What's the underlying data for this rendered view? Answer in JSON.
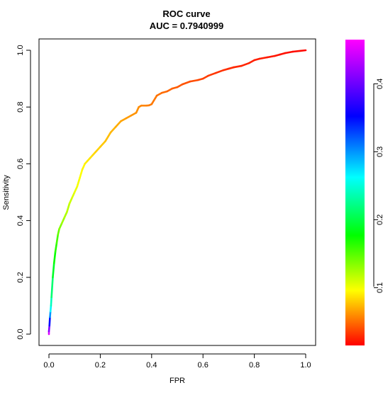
{
  "chart_data": {
    "type": "line",
    "title": "ROC curve",
    "subtitle": "AUC = 0.7940999",
    "xlabel": "FPR",
    "ylabel": "Sensitivity",
    "xlim": [
      0,
      1
    ],
    "ylim": [
      0,
      1
    ],
    "x_ticks": [
      "0.0",
      "0.2",
      "0.4",
      "0.6",
      "0.8",
      "1.0"
    ],
    "y_ticks": [
      "0.0",
      "0.2",
      "0.4",
      "0.6",
      "0.8",
      "1.0"
    ],
    "grid": false,
    "colorbar": {
      "range": [
        0.015,
        0.465
      ],
      "ticks": [
        "0.1",
        "0.2",
        "0.3",
        "0.4"
      ],
      "tick_values": [
        0.1,
        0.2,
        0.3,
        0.4
      ],
      "colormap": "rainbow (red→yellow→green→cyan→blue→magenta)"
    },
    "series": [
      {
        "x": [
          0.0,
          0.0,
          0.002,
          0.004,
          0.006,
          0.008,
          0.01,
          0.015,
          0.02,
          0.025,
          0.03,
          0.035,
          0.04,
          0.05,
          0.06,
          0.07,
          0.08,
          0.09,
          0.1,
          0.11,
          0.12,
          0.13,
          0.14,
          0.15,
          0.16,
          0.17,
          0.18,
          0.2,
          0.22,
          0.24,
          0.26,
          0.28,
          0.3,
          0.32,
          0.34,
          0.35,
          0.36,
          0.38,
          0.39,
          0.4,
          0.42,
          0.44,
          0.46,
          0.48,
          0.5,
          0.52,
          0.55,
          0.58,
          0.6,
          0.62,
          0.65,
          0.68,
          0.7,
          0.72,
          0.75,
          0.78,
          0.8,
          0.82,
          0.85,
          0.88,
          0.9,
          0.92,
          0.95,
          0.98,
          1.0
        ],
        "y": [
          0.0,
          0.01,
          0.03,
          0.06,
          0.08,
          0.1,
          0.13,
          0.2,
          0.25,
          0.29,
          0.32,
          0.35,
          0.37,
          0.39,
          0.41,
          0.43,
          0.46,
          0.48,
          0.5,
          0.52,
          0.55,
          0.58,
          0.6,
          0.61,
          0.62,
          0.63,
          0.64,
          0.66,
          0.68,
          0.71,
          0.73,
          0.75,
          0.76,
          0.77,
          0.78,
          0.8,
          0.805,
          0.805,
          0.806,
          0.81,
          0.84,
          0.85,
          0.855,
          0.865,
          0.87,
          0.88,
          0.89,
          0.895,
          0.9,
          0.91,
          0.92,
          0.93,
          0.935,
          0.94,
          0.945,
          0.955,
          0.965,
          0.97,
          0.975,
          0.98,
          0.985,
          0.99,
          0.995,
          0.998,
          1.0
        ],
        "threshold": [
          0.46,
          0.44,
          0.38,
          0.32,
          0.28,
          0.25,
          0.23,
          0.2,
          0.18,
          0.17,
          0.16,
          0.15,
          0.14,
          0.13,
          0.125,
          0.12,
          0.115,
          0.11,
          0.105,
          0.1,
          0.098,
          0.095,
          0.092,
          0.09,
          0.088,
          0.085,
          0.083,
          0.08,
          0.077,
          0.074,
          0.071,
          0.068,
          0.065,
          0.063,
          0.061,
          0.06,
          0.058,
          0.056,
          0.055,
          0.054,
          0.052,
          0.05,
          0.048,
          0.046,
          0.044,
          0.042,
          0.04,
          0.038,
          0.036,
          0.034,
          0.032,
          0.03,
          0.029,
          0.028,
          0.027,
          0.026,
          0.025,
          0.024,
          0.023,
          0.022,
          0.021,
          0.02,
          0.019,
          0.018,
          0.017
        ]
      }
    ]
  }
}
